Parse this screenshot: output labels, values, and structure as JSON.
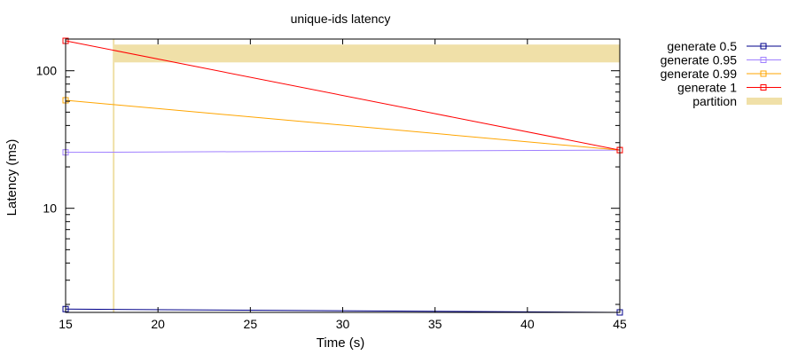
{
  "chart_data": {
    "type": "line",
    "title": "unique-ids latency",
    "xlabel": "Time (s)",
    "ylabel": "Latency (ms)",
    "x_ticks": [
      "15",
      "20",
      "25",
      "30",
      "35",
      "40",
      "45"
    ],
    "y_ticks": [
      "10",
      "100"
    ],
    "xlim": [
      15,
      45
    ],
    "ylim": [
      1.75,
      170
    ],
    "y_scale": "log",
    "grid": false,
    "legend_position": "top-right-outside",
    "series": [
      {
        "name": "generate 0.5",
        "color": "#00008b",
        "marker": "square",
        "x": [
          15,
          45
        ],
        "y": [
          1.85,
          1.75
        ]
      },
      {
        "name": "generate 0.95",
        "color": "#a080ff",
        "marker": "square",
        "x": [
          15,
          45
        ],
        "y": [
          25.5,
          26.5
        ]
      },
      {
        "name": "generate 0.99",
        "color": "#ffa500",
        "marker": "square",
        "x": [
          15,
          45
        ],
        "y": [
          61,
          26.5
        ]
      },
      {
        "name": "generate 1",
        "color": "#ff0000",
        "marker": "square",
        "x": [
          15,
          45
        ],
        "y": [
          165,
          26.5
        ]
      }
    ],
    "partition": {
      "name": "partition",
      "color": "#f0e0a8",
      "start_x": 17.6,
      "end_x": 45,
      "y_range": [
        115,
        155
      ]
    }
  }
}
